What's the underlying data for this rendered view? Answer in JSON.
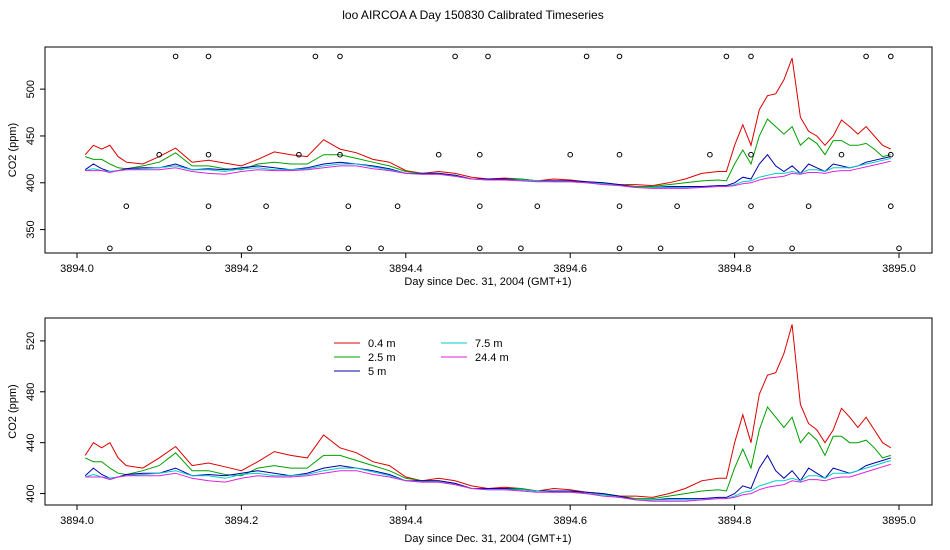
{
  "title": "loo AIRCOA A  Day 150830  Calibrated Timeseries",
  "colors": {
    "0.4 m": "#dd0000",
    "2.5 m": "#00a000",
    "5 m": "#0000aa",
    "7.5 m": "#00cccc",
    "24.4 m": "#dd22dd"
  },
  "chart_data": [
    {
      "type": "line",
      "xlabel": "Day since Dec. 31, 2004 (GMT+1)",
      "ylabel": "CO2 (ppm)",
      "xlim": [
        3894.0,
        3895.0
      ],
      "ylim": [
        325,
        545
      ],
      "xticks": [
        "3894.0",
        "3894.2",
        "3894.4",
        "3894.6",
        "3894.8",
        "3895.0"
      ],
      "yticks": [
        "350",
        "400",
        "450",
        "500"
      ],
      "markers": [
        {
          "x": 3894.12,
          "y": 535
        },
        {
          "x": 3894.16,
          "y": 535
        },
        {
          "x": 3894.29,
          "y": 535
        },
        {
          "x": 3894.32,
          "y": 535
        },
        {
          "x": 3894.46,
          "y": 535
        },
        {
          "x": 3894.5,
          "y": 535
        },
        {
          "x": 3894.62,
          "y": 535
        },
        {
          "x": 3894.66,
          "y": 535
        },
        {
          "x": 3894.79,
          "y": 535
        },
        {
          "x": 3894.82,
          "y": 535
        },
        {
          "x": 3894.96,
          "y": 535
        },
        {
          "x": 3894.99,
          "y": 535
        },
        {
          "x": 3894.1,
          "y": 430
        },
        {
          "x": 3894.16,
          "y": 430
        },
        {
          "x": 3894.27,
          "y": 430
        },
        {
          "x": 3894.32,
          "y": 430
        },
        {
          "x": 3894.44,
          "y": 430
        },
        {
          "x": 3894.49,
          "y": 430
        },
        {
          "x": 3894.6,
          "y": 430
        },
        {
          "x": 3894.66,
          "y": 430
        },
        {
          "x": 3894.77,
          "y": 430
        },
        {
          "x": 3894.82,
          "y": 430
        },
        {
          "x": 3894.93,
          "y": 430
        },
        {
          "x": 3894.99,
          "y": 430
        },
        {
          "x": 3894.06,
          "y": 375
        },
        {
          "x": 3894.16,
          "y": 375
        },
        {
          "x": 3894.23,
          "y": 375
        },
        {
          "x": 3894.33,
          "y": 375
        },
        {
          "x": 3894.39,
          "y": 375
        },
        {
          "x": 3894.49,
          "y": 375
        },
        {
          "x": 3894.56,
          "y": 375
        },
        {
          "x": 3894.66,
          "y": 375
        },
        {
          "x": 3894.73,
          "y": 375
        },
        {
          "x": 3894.82,
          "y": 375
        },
        {
          "x": 3894.89,
          "y": 375
        },
        {
          "x": 3894.99,
          "y": 375
        },
        {
          "x": 3894.04,
          "y": 330
        },
        {
          "x": 3894.16,
          "y": 330
        },
        {
          "x": 3894.21,
          "y": 330
        },
        {
          "x": 3894.33,
          "y": 330
        },
        {
          "x": 3894.37,
          "y": 330
        },
        {
          "x": 3894.49,
          "y": 330
        },
        {
          "x": 3894.54,
          "y": 330
        },
        {
          "x": 3894.66,
          "y": 330
        },
        {
          "x": 3894.71,
          "y": 330
        },
        {
          "x": 3894.82,
          "y": 330
        },
        {
          "x": 3894.87,
          "y": 330
        },
        {
          "x": 3895.0,
          "y": 330
        }
      ],
      "series": [
        {
          "name": "0.4 m",
          "x": [
            3894.01,
            3894.02,
            3894.03,
            3894.04,
            3894.05,
            3894.06,
            3894.08,
            3894.1,
            3894.12,
            3894.14,
            3894.16,
            3894.18,
            3894.2,
            3894.22,
            3894.24,
            3894.26,
            3894.28,
            3894.3,
            3894.32,
            3894.34,
            3894.36,
            3894.38,
            3894.4,
            3894.42,
            3894.44,
            3894.46,
            3894.48,
            3894.5,
            3894.52,
            3894.54,
            3894.56,
            3894.58,
            3894.6,
            3894.62,
            3894.64,
            3894.66,
            3894.68,
            3894.7,
            3894.72,
            3894.74,
            3894.76,
            3894.78,
            3894.79,
            3894.8,
            3894.81,
            3894.82,
            3894.83,
            3894.84,
            3894.85,
            3894.86,
            3894.87,
            3894.88,
            3894.89,
            3894.9,
            3894.91,
            3894.92,
            3894.93,
            3894.94,
            3894.95,
            3894.96,
            3894.97,
            3894.98,
            3894.99
          ],
          "y": [
            430,
            440,
            436,
            440,
            428,
            422,
            420,
            428,
            437,
            422,
            424,
            421,
            418,
            425,
            433,
            430,
            428,
            446,
            436,
            432,
            425,
            422,
            413,
            410,
            412,
            410,
            406,
            404,
            405,
            404,
            402,
            404,
            403,
            401,
            400,
            398,
            398,
            397,
            400,
            404,
            410,
            412,
            412,
            440,
            462,
            440,
            478,
            493,
            495,
            510,
            533,
            470,
            455,
            450,
            440,
            450,
            467,
            460,
            452,
            460,
            450,
            440,
            436
          ]
        },
        {
          "name": "2.5 m",
          "x": [
            3894.01,
            3894.02,
            3894.03,
            3894.04,
            3894.05,
            3894.06,
            3894.08,
            3894.1,
            3894.12,
            3894.14,
            3894.16,
            3894.18,
            3894.2,
            3894.22,
            3894.24,
            3894.26,
            3894.28,
            3894.3,
            3894.32,
            3894.34,
            3894.36,
            3894.38,
            3894.4,
            3894.42,
            3894.44,
            3894.46,
            3894.48,
            3894.5,
            3894.52,
            3894.54,
            3894.56,
            3894.58,
            3894.6,
            3894.62,
            3894.64,
            3894.66,
            3894.68,
            3894.7,
            3894.72,
            3894.74,
            3894.76,
            3894.78,
            3894.79,
            3894.8,
            3894.81,
            3894.82,
            3894.83,
            3894.84,
            3894.85,
            3894.86,
            3894.87,
            3894.88,
            3894.89,
            3894.9,
            3894.91,
            3894.92,
            3894.93,
            3894.94,
            3894.95,
            3894.96,
            3894.97,
            3894.98,
            3894.99
          ],
          "y": [
            428,
            425,
            425,
            420,
            416,
            415,
            418,
            422,
            432,
            418,
            418,
            415,
            414,
            420,
            422,
            420,
            420,
            430,
            430,
            426,
            422,
            418,
            412,
            410,
            410,
            408,
            404,
            404,
            404,
            404,
            402,
            402,
            402,
            400,
            399,
            398,
            396,
            396,
            398,
            400,
            402,
            403,
            402,
            420,
            435,
            420,
            450,
            468,
            460,
            452,
            460,
            440,
            448,
            442,
            430,
            445,
            445,
            440,
            440,
            442,
            436,
            428,
            430
          ]
        },
        {
          "name": "5 m",
          "x": [
            3894.01,
            3894.02,
            3894.03,
            3894.04,
            3894.05,
            3894.06,
            3894.08,
            3894.1,
            3894.12,
            3894.14,
            3894.16,
            3894.18,
            3894.2,
            3894.22,
            3894.24,
            3894.26,
            3894.28,
            3894.3,
            3894.32,
            3894.34,
            3894.36,
            3894.38,
            3894.4,
            3894.42,
            3894.44,
            3894.46,
            3894.48,
            3894.5,
            3894.52,
            3894.54,
            3894.56,
            3894.58,
            3894.6,
            3894.62,
            3894.64,
            3894.66,
            3894.68,
            3894.7,
            3894.72,
            3894.74,
            3894.76,
            3894.78,
            3894.79,
            3894.8,
            3894.81,
            3894.82,
            3894.83,
            3894.84,
            3894.85,
            3894.86,
            3894.87,
            3894.88,
            3894.89,
            3894.9,
            3894.91,
            3894.92,
            3894.93,
            3894.94,
            3894.95,
            3894.96,
            3894.97,
            3894.98,
            3894.99
          ],
          "y": [
            414,
            420,
            415,
            412,
            413,
            415,
            416,
            416,
            420,
            414,
            415,
            414,
            416,
            418,
            416,
            414,
            416,
            420,
            422,
            420,
            418,
            415,
            410,
            410,
            410,
            408,
            404,
            404,
            404,
            403,
            402,
            402,
            402,
            401,
            400,
            398,
            395,
            395,
            396,
            396,
            396,
            397,
            397,
            400,
            406,
            404,
            420,
            430,
            418,
            412,
            418,
            410,
            420,
            416,
            412,
            420,
            418,
            416,
            418,
            422,
            424,
            426,
            428
          ]
        },
        {
          "name": "7.5 m",
          "x": [
            3894.01,
            3894.02,
            3894.03,
            3894.04,
            3894.05,
            3894.06,
            3894.08,
            3894.1,
            3894.12,
            3894.14,
            3894.16,
            3894.18,
            3894.2,
            3894.22,
            3894.24,
            3894.26,
            3894.28,
            3894.3,
            3894.32,
            3894.34,
            3894.36,
            3894.38,
            3894.4,
            3894.42,
            3894.44,
            3894.46,
            3894.48,
            3894.5,
            3894.52,
            3894.54,
            3894.56,
            3894.58,
            3894.6,
            3894.62,
            3894.64,
            3894.66,
            3894.68,
            3894.7,
            3894.72,
            3894.74,
            3894.76,
            3894.78,
            3894.79,
            3894.8,
            3894.81,
            3894.82,
            3894.83,
            3894.84,
            3894.85,
            3894.86,
            3894.87,
            3894.88,
            3894.89,
            3894.9,
            3894.91,
            3894.92,
            3894.93,
            3894.94,
            3894.95,
            3894.96,
            3894.97,
            3894.98,
            3894.99
          ],
          "y": [
            413,
            415,
            413,
            412,
            413,
            414,
            415,
            416,
            418,
            414,
            414,
            412,
            415,
            416,
            414,
            414,
            415,
            418,
            420,
            420,
            417,
            414,
            410,
            409,
            409,
            407,
            404,
            403,
            403,
            403,
            402,
            401,
            401,
            400,
            399,
            397,
            395,
            395,
            395,
            395,
            395,
            396,
            396,
            398,
            401,
            402,
            406,
            408,
            410,
            410,
            412,
            410,
            414,
            414,
            412,
            416,
            416,
            416,
            418,
            420,
            422,
            424,
            426
          ]
        },
        {
          "name": "24.4 m",
          "x": [
            3894.01,
            3894.02,
            3894.03,
            3894.04,
            3894.05,
            3894.06,
            3894.08,
            3894.1,
            3894.12,
            3894.14,
            3894.16,
            3894.18,
            3894.2,
            3894.22,
            3894.24,
            3894.26,
            3894.28,
            3894.3,
            3894.32,
            3894.34,
            3894.36,
            3894.38,
            3894.4,
            3894.42,
            3894.44,
            3894.46,
            3894.48,
            3894.5,
            3894.52,
            3894.54,
            3894.56,
            3894.58,
            3894.6,
            3894.62,
            3894.64,
            3894.66,
            3894.68,
            3894.7,
            3894.72,
            3894.74,
            3894.76,
            3894.78,
            3894.79,
            3894.8,
            3894.81,
            3894.82,
            3894.83,
            3894.84,
            3894.85,
            3894.86,
            3894.87,
            3894.88,
            3894.89,
            3894.9,
            3894.91,
            3894.92,
            3894.93,
            3894.94,
            3894.95,
            3894.96,
            3894.97,
            3894.98,
            3894.99
          ],
          "y": [
            413,
            413,
            413,
            411,
            413,
            414,
            414,
            414,
            416,
            412,
            410,
            409,
            412,
            414,
            413,
            413,
            414,
            416,
            418,
            418,
            415,
            413,
            410,
            409,
            409,
            407,
            404,
            403,
            403,
            402,
            401,
            401,
            401,
            400,
            398,
            397,
            395,
            394,
            394,
            394,
            395,
            396,
            396,
            397,
            399,
            400,
            403,
            405,
            406,
            407,
            410,
            409,
            411,
            411,
            410,
            412,
            413,
            413,
            415,
            417,
            419,
            421,
            423
          ]
        }
      ]
    },
    {
      "type": "line",
      "xlabel": "Day since Dec. 31, 2004 (GMT+1)",
      "ylabel": "CO2 (ppm)",
      "xlim": [
        3894.0,
        3895.0
      ],
      "ylim": [
        391,
        538
      ],
      "xticks": [
        "3894.0",
        "3894.2",
        "3894.4",
        "3894.6",
        "3894.8",
        "3895.0"
      ],
      "yticks": [
        "400",
        "440",
        "480",
        "520"
      ],
      "legend": [
        [
          "0.4 m",
          "2.5 m",
          "5 m"
        ],
        [
          "7.5 m",
          "24.4 m"
        ]
      ],
      "legend_position": "top-left",
      "series_ref": "same series as panel 1"
    }
  ]
}
